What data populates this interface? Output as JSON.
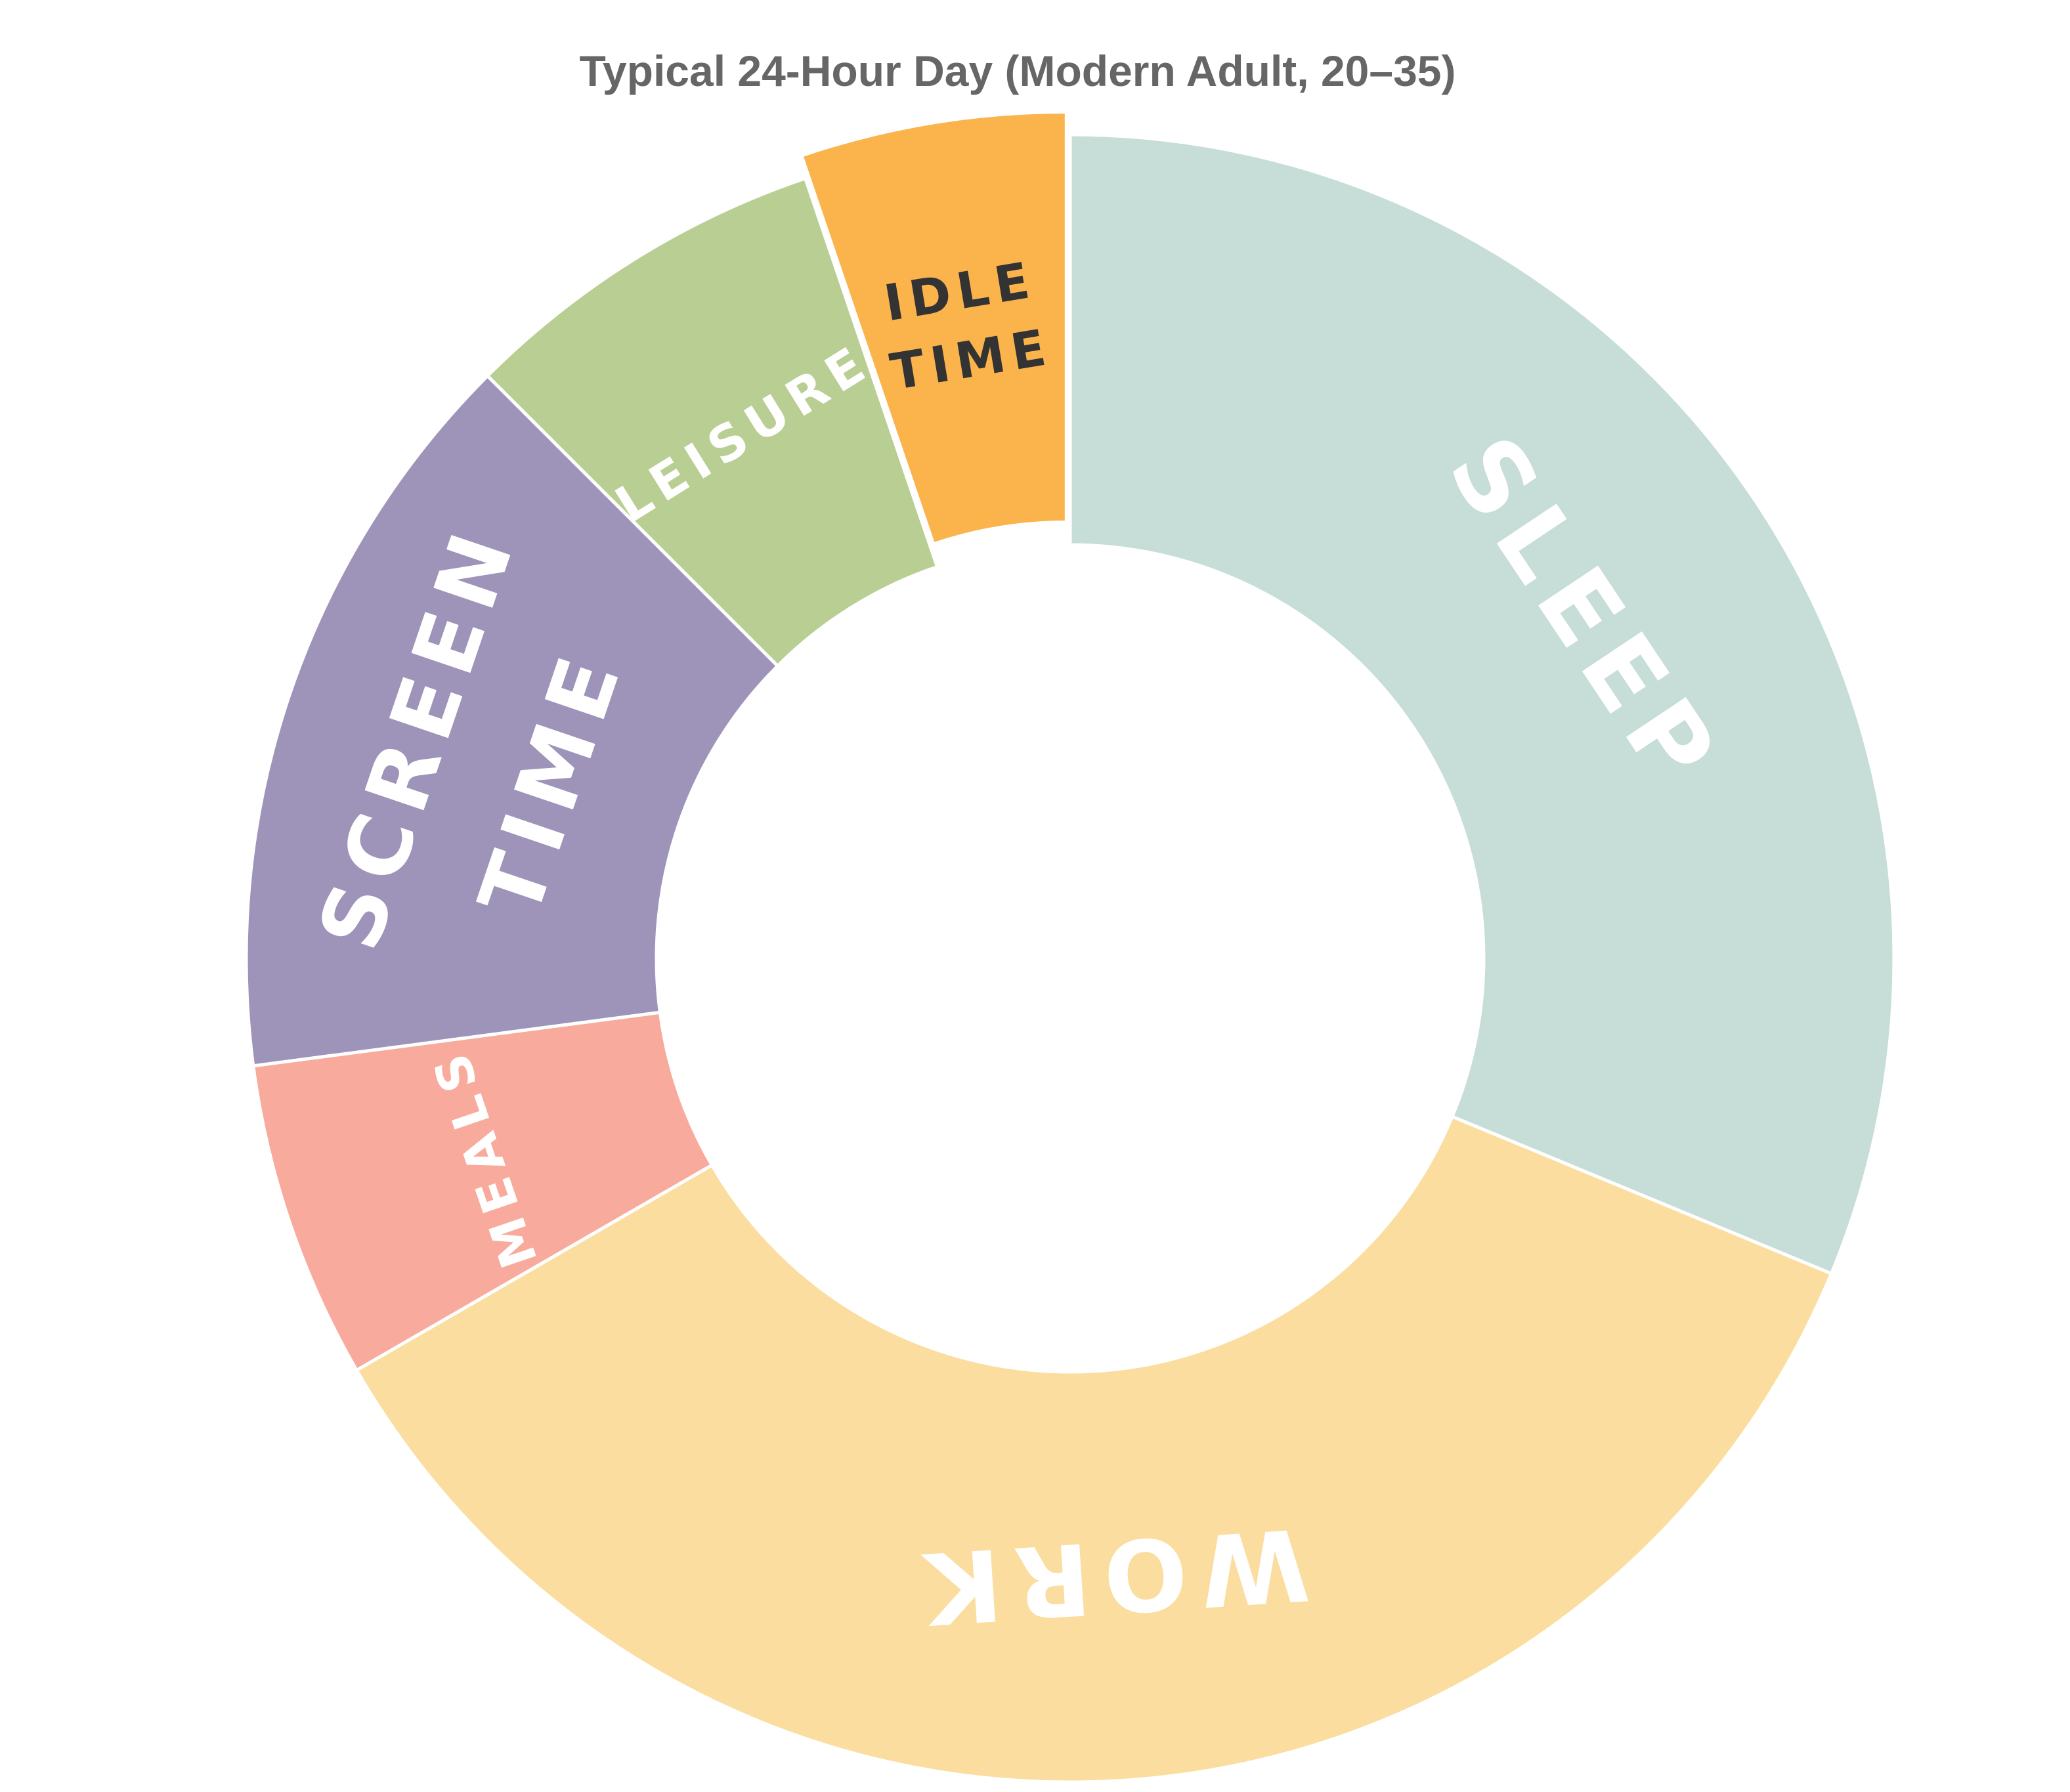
{
  "chart_data": {
    "type": "pie",
    "title": "Typical 24-Hour Day (Modern Adult, 20–35)",
    "unit": "hours",
    "total": 24,
    "series": [
      {
        "categories": [
          "SLEEP",
          "WORK",
          "MEALS",
          "SCREEN TIME",
          "LEISURE",
          "IDLE TIME"
        ],
        "values": [
          7.5,
          8.5,
          1.5,
          3.5,
          1.75,
          1.25
        ],
        "colors": [
          "#C7DDD7",
          "#FADD9F",
          "#F8AB9C",
          "#9E94BA",
          "#B9CE93",
          "#FBB34C"
        ],
        "label_colors": [
          "#FFFFFF",
          "#FFFFFF",
          "#FFFFFF",
          "#FFFFFF",
          "#FFFFFF",
          "#333333"
        ],
        "label_lines": [
          [
            "SLEEP"
          ],
          [
            "WORK"
          ],
          [
            "MEALS"
          ],
          [
            "SCREEN",
            "TIME"
          ],
          [
            "LEISURE"
          ],
          [
            "IDLE",
            "TIME"
          ]
        ],
        "exploded": [
          false,
          false,
          false,
          false,
          false,
          true
        ]
      }
    ],
    "donut": true,
    "start_angle_deg": 0,
    "direction": "clockwise",
    "legend": "none"
  }
}
